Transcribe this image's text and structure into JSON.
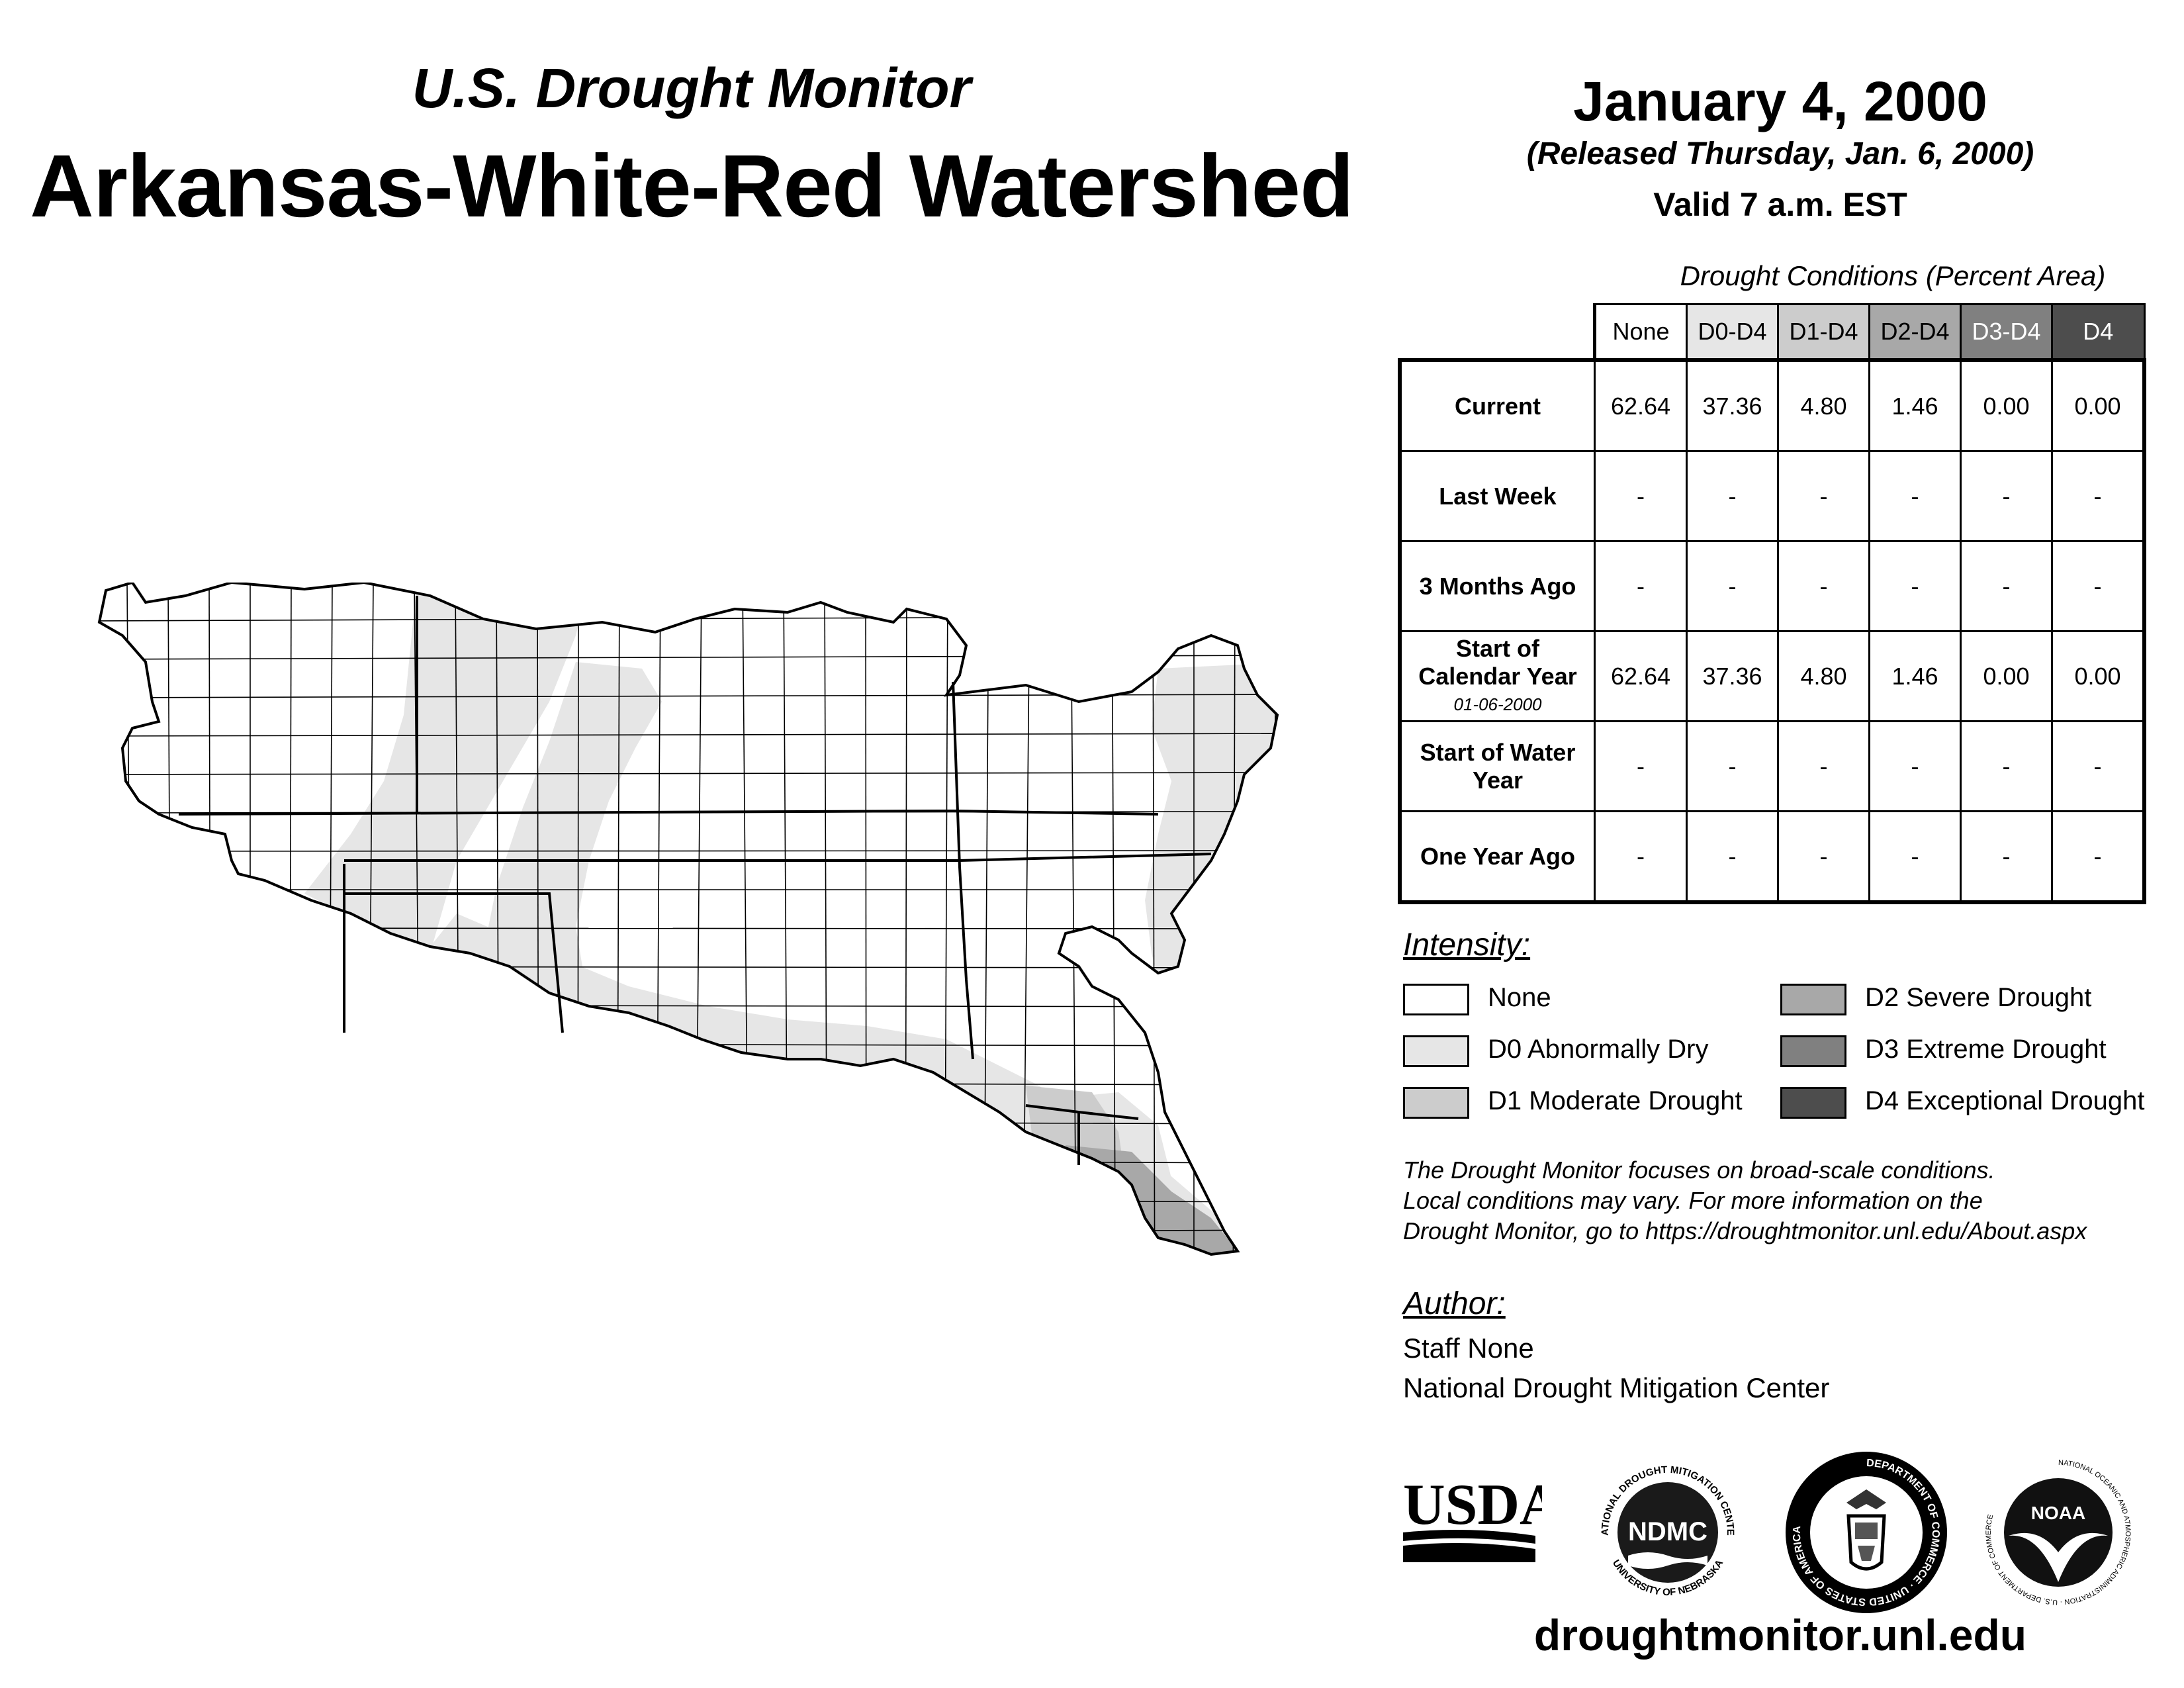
{
  "header": {
    "subtitle": "U.S. Drought Monitor",
    "title": "Arkansas-White-Red Watershed",
    "date": "January 4, 2000",
    "released": "(Released Thursday, Jan. 6, 2000)",
    "valid": "Valid 7 a.m. EST"
  },
  "colors": {
    "none": "#ffffff",
    "d0": "#e6e6e6",
    "d1": "#cccccc",
    "d2": "#a8a8a8",
    "d3": "#808080",
    "d4": "#4d4d4d"
  },
  "table": {
    "caption": "Drought Conditions (Percent Area)",
    "columns": [
      "None",
      "D0-D4",
      "D1-D4",
      "D2-D4",
      "D3-D4",
      "D4"
    ],
    "rows": [
      {
        "label": "Current",
        "sublabel": "",
        "values": [
          "62.64",
          "37.36",
          "4.80",
          "1.46",
          "0.00",
          "0.00"
        ]
      },
      {
        "label": "Last Week",
        "sublabel": "",
        "values": [
          "-",
          "-",
          "-",
          "-",
          "-",
          "-"
        ]
      },
      {
        "label": "3 Months Ago",
        "sublabel": "",
        "values": [
          "-",
          "-",
          "-",
          "-",
          "-",
          "-"
        ]
      },
      {
        "label": "Start of Calendar Year",
        "sublabel": "01-06-2000",
        "values": [
          "62.64",
          "37.36",
          "4.80",
          "1.46",
          "0.00",
          "0.00"
        ]
      },
      {
        "label": "Start of Water Year",
        "sublabel": "",
        "values": [
          "-",
          "-",
          "-",
          "-",
          "-",
          "-"
        ]
      },
      {
        "label": "One Year Ago",
        "sublabel": "",
        "values": [
          "-",
          "-",
          "-",
          "-",
          "-",
          "-"
        ]
      }
    ]
  },
  "legend": {
    "heading": "Intensity:",
    "items": [
      {
        "label": "None",
        "color": "#ffffff"
      },
      {
        "label": "D0 Abnormally Dry",
        "color": "#e6e6e6"
      },
      {
        "label": "D1 Moderate Drought",
        "color": "#cccccc"
      },
      {
        "label": "D2 Severe Drought",
        "color": "#a8a8a8"
      },
      {
        "label": "D3 Extreme Drought",
        "color": "#808080"
      },
      {
        "label": "D4 Exceptional Drought",
        "color": "#4d4d4d"
      }
    ]
  },
  "note": {
    "line1": "The Drought Monitor focuses on broad-scale conditions.",
    "line2": "Local conditions may vary. For more information on the",
    "line3": "Drought Monitor, go to https://droughtmonitor.unl.edu/About.aspx"
  },
  "author": {
    "heading": "Author:",
    "name": "Staff None",
    "org": "National Drought Mitigation Center"
  },
  "logos": {
    "usda": "USDA",
    "ndmc": "NDMC",
    "ndmc_ring_top": "NATIONAL DROUGHT MITIGATION CENTER",
    "ndmc_ring_bottom": "UNIVERSITY OF NEBRASKA",
    "doc_ring": "DEPARTMENT OF COMMERCE · UNITED STATES OF AMERICA",
    "noaa": "NOAA",
    "noaa_ring": "NATIONAL OCEANIC AND ATMOSPHERIC ADMINISTRATION · U.S. DEPARTMENT OF COMMERCE"
  },
  "website": "droughtmonitor.unl.edu"
}
